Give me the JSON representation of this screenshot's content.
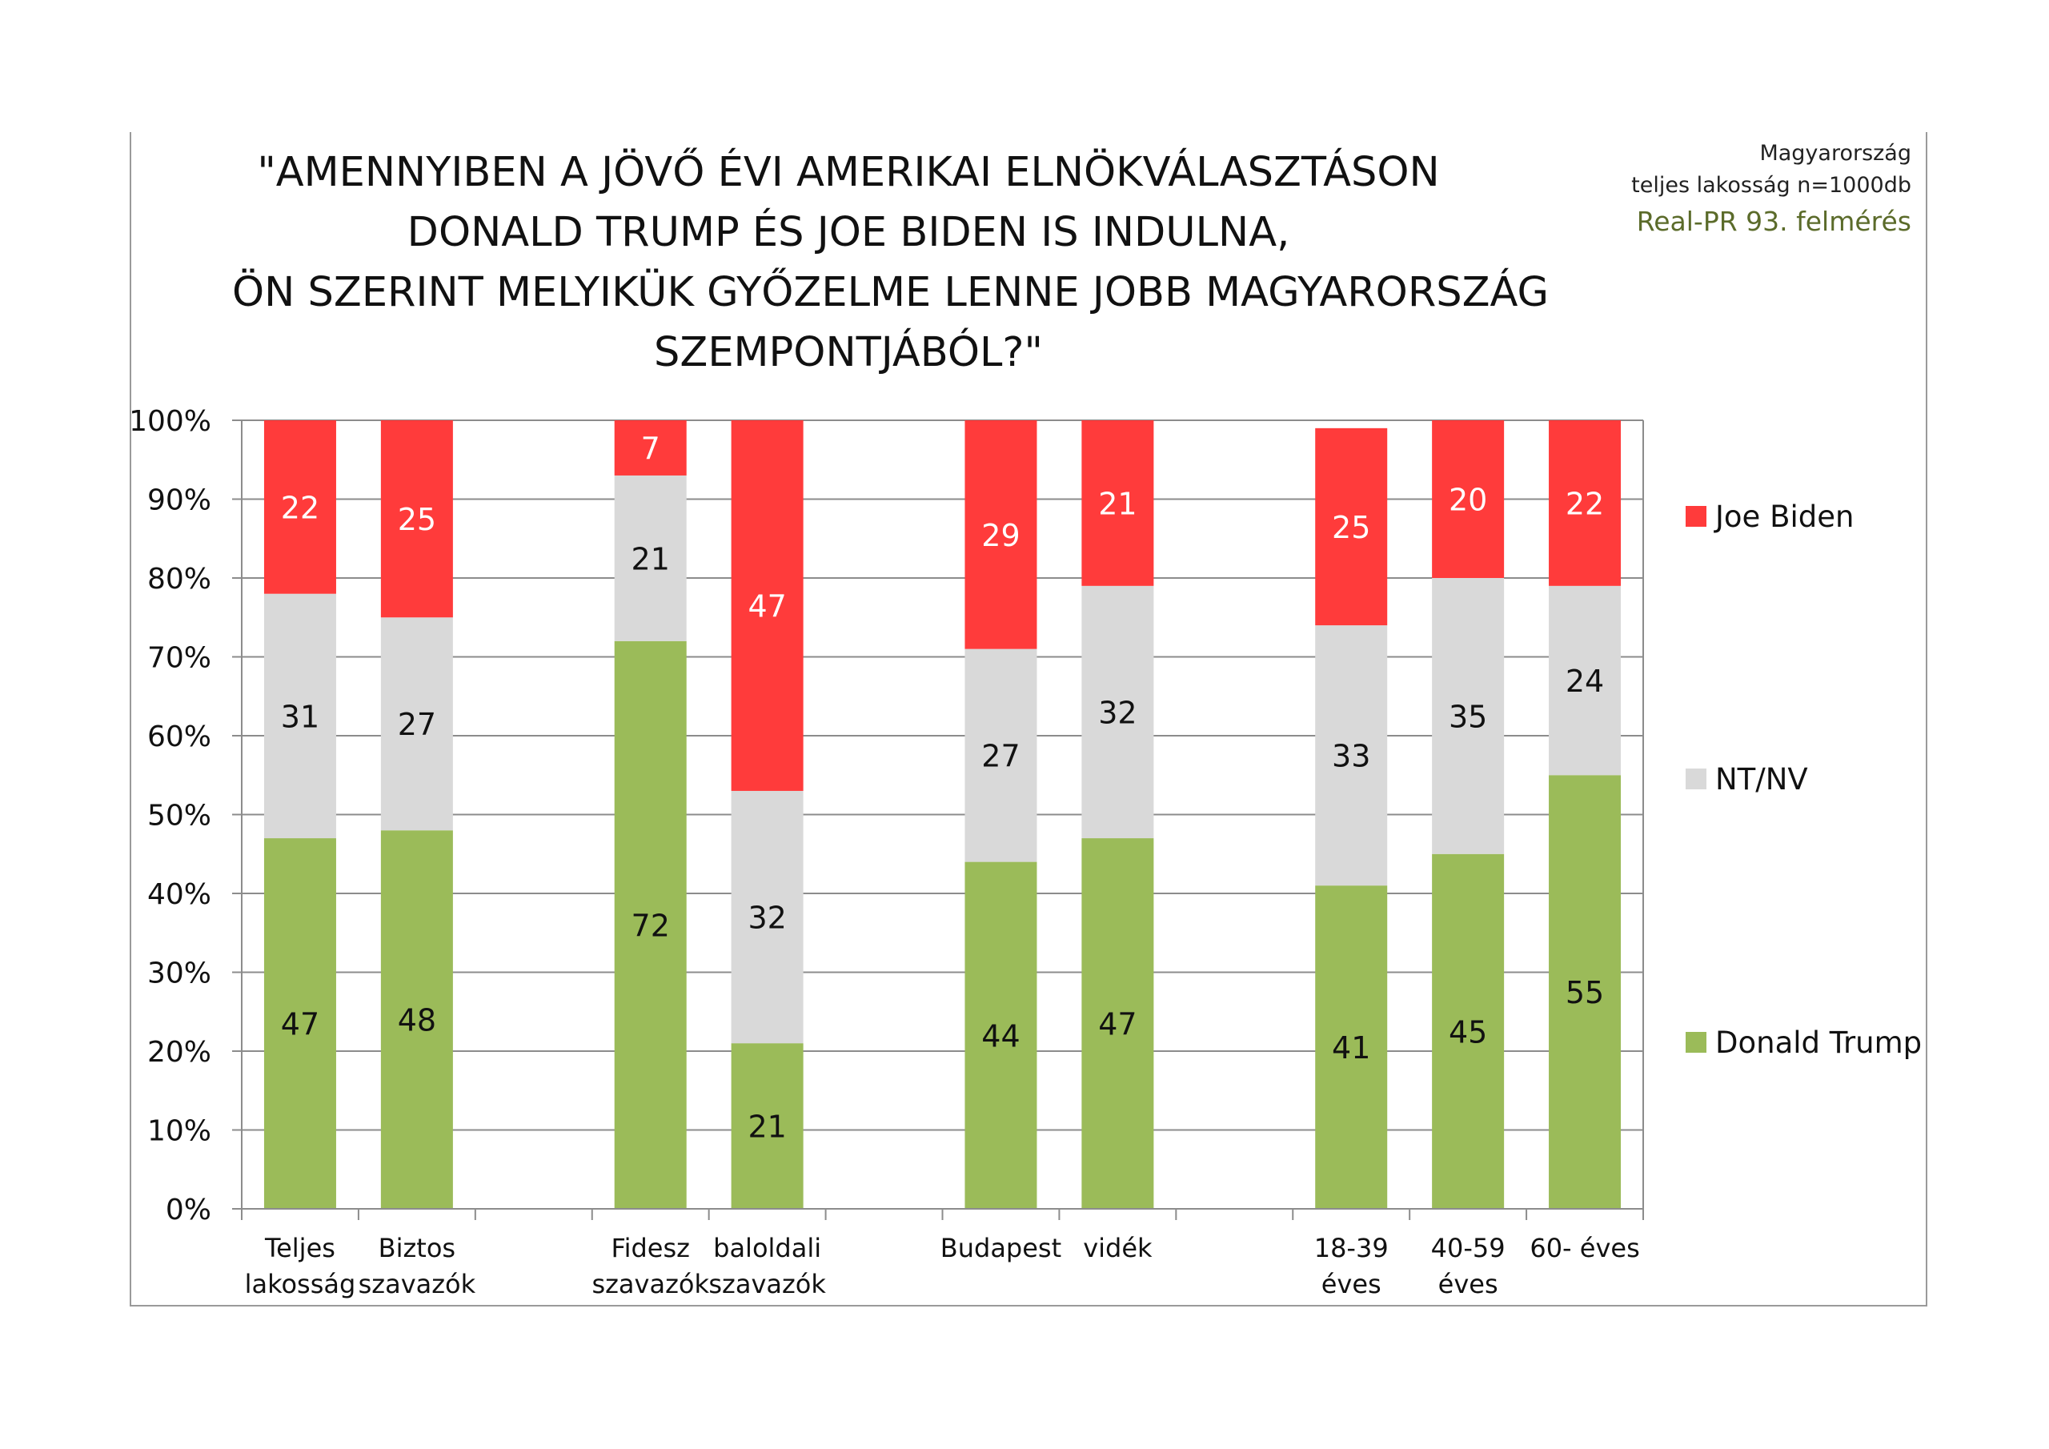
{
  "meta": {
    "country": "Magyarország",
    "sample": "teljes lakosság n=1000db",
    "survey": "Real-PR 93. felmérés"
  },
  "chart_data": {
    "type": "bar",
    "stacked": true,
    "title_lines": [
      "\"AMENNYIBEN A JÖVŐ ÉVI AMERIKAI ELNÖKVÁLASZTÁSON",
      "DONALD TRUMP ÉS JOE BIDEN IS INDULNA,",
      "ÖN SZERINT MELYIKÜK GYŐZELME LENNE JOBB MAGYARORSZÁG",
      "SZEMPONTJÁBÓL?\""
    ],
    "categories": [
      [
        "Teljes",
        "lakosság"
      ],
      [
        "Biztos",
        "szavazók"
      ],
      [
        "",
        ""
      ],
      [
        "Fidesz",
        "szavazók"
      ],
      [
        "baloldali",
        "szavazók"
      ],
      [
        "",
        ""
      ],
      [
        "Budapest",
        ""
      ],
      [
        "vidék",
        ""
      ],
      [
        "",
        ""
      ],
      [
        "18-39",
        "éves"
      ],
      [
        "40-59",
        "éves"
      ],
      [
        "60-  éves",
        ""
      ]
    ],
    "series": [
      {
        "name": "Donald Trump",
        "color": "#9bbb59",
        "label_color": "#111111",
        "values": [
          47,
          48,
          null,
          72,
          21,
          null,
          44,
          47,
          null,
          41,
          45,
          55
        ]
      },
      {
        "name": "NT/NV",
        "color": "#d9d9d9",
        "label_color": "#111111",
        "values": [
          31,
          27,
          null,
          21,
          32,
          null,
          27,
          32,
          null,
          33,
          35,
          24
        ]
      },
      {
        "name": "Joe Biden",
        "color": "#ff3b3b",
        "label_color": "#ffffff",
        "values": [
          22,
          25,
          null,
          7,
          47,
          null,
          29,
          21,
          null,
          25,
          20,
          22
        ]
      }
    ],
    "yticks": [
      "0%",
      "10%",
      "20%",
      "30%",
      "40%",
      "50%",
      "60%",
      "70%",
      "80%",
      "90%",
      "100%"
    ],
    "ylim": [
      0,
      100
    ],
    "grid": true,
    "legend_position": "right",
    "legend_order": [
      "Joe Biden",
      "NT/NV",
      "Donald Trump"
    ]
  }
}
